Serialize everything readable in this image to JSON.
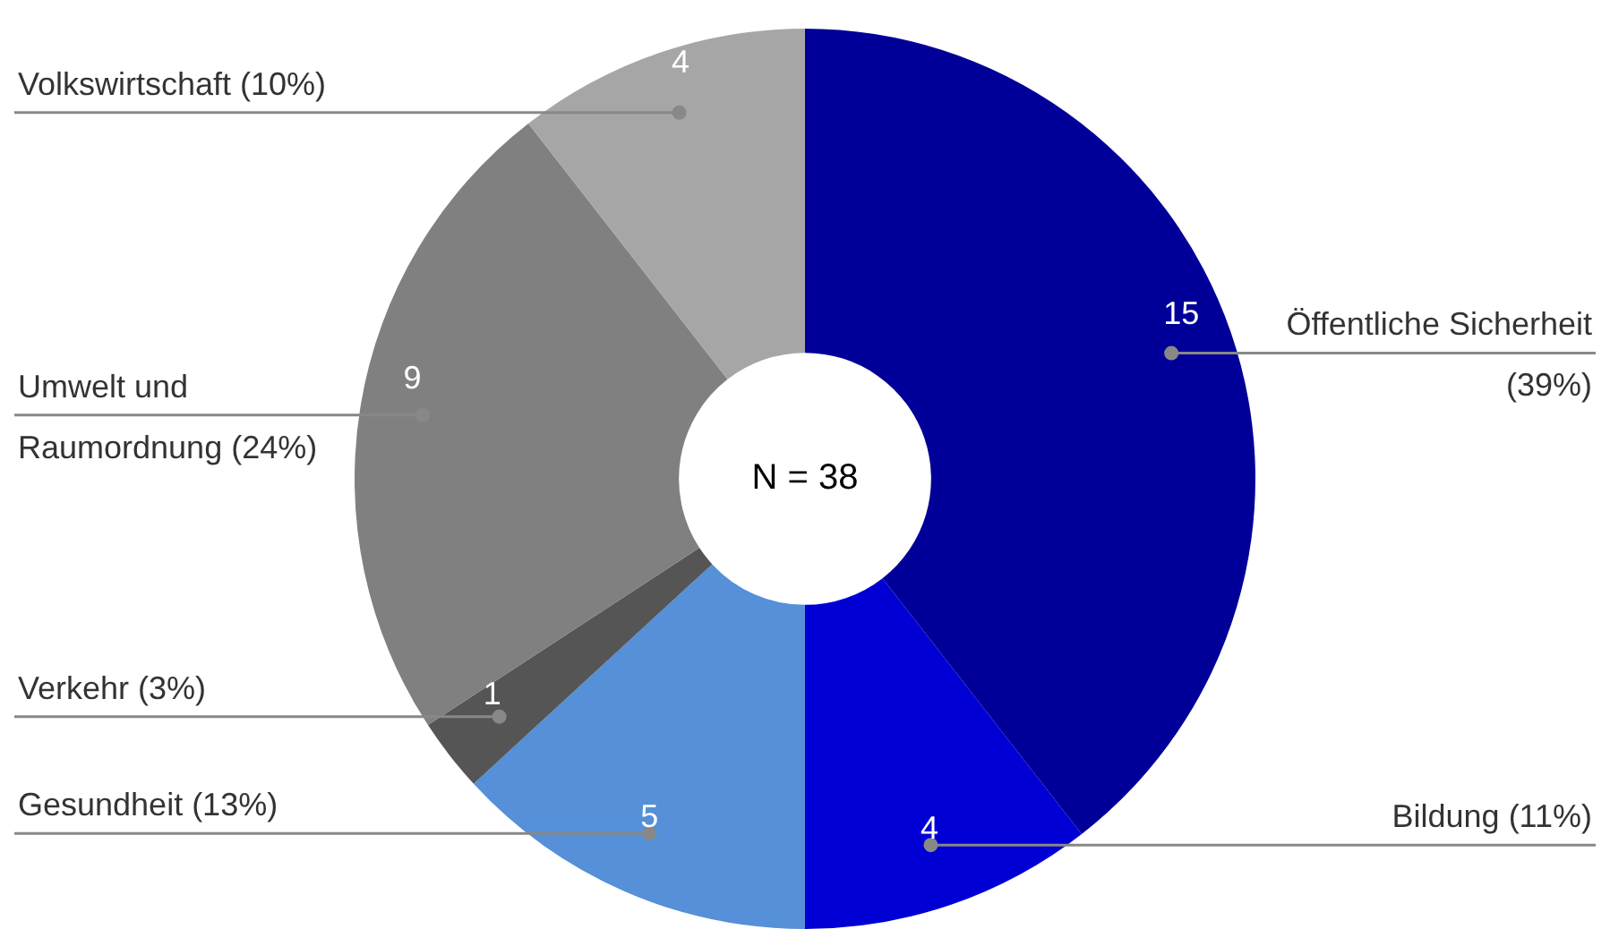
{
  "chart_data": {
    "type": "donut",
    "categories": [
      "Öffentliche Sicherheit (39%)",
      "Bildung (11%)",
      "Gesundheit (13%)",
      "Verkehr (3%)",
      "Umwelt und Raumordnung (24%)",
      "Volkswirtschaft (10%)"
    ],
    "values": [
      15,
      4,
      5,
      1,
      9,
      4
    ],
    "colors": [
      "#000099",
      "#0000d4",
      "#5590d8",
      "#555555",
      "#808080",
      "#a6a6a6"
    ],
    "data_labels": true,
    "annotations": [
      "N = 38"
    ]
  }
}
